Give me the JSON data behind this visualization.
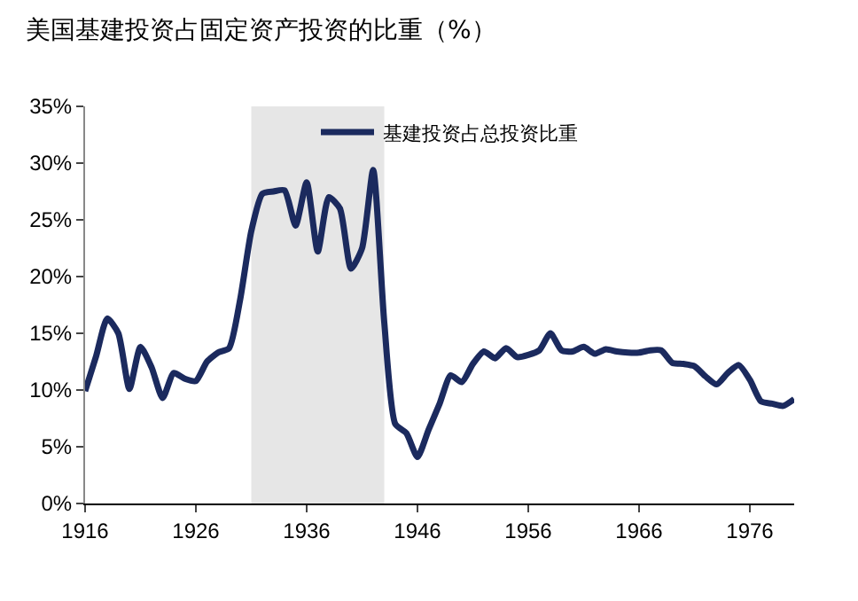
{
  "chart_data": {
    "type": "line",
    "title": "美国基建投资占固定资产投资的比重（%）",
    "x": [
      1916,
      1917,
      1918,
      1919,
      1920,
      1921,
      1922,
      1923,
      1924,
      1925,
      1926,
      1927,
      1928,
      1929,
      1930,
      1931,
      1932,
      1933,
      1934,
      1935,
      1936,
      1937,
      1938,
      1939,
      1940,
      1941,
      1942,
      1943,
      1944,
      1945,
      1946,
      1947,
      1948,
      1949,
      1950,
      1951,
      1952,
      1953,
      1954,
      1955,
      1956,
      1957,
      1958,
      1959,
      1960,
      1961,
      1962,
      1963,
      1964,
      1965,
      1966,
      1967,
      1968,
      1969,
      1970,
      1971,
      1972,
      1973,
      1974,
      1975,
      1976,
      1977,
      1978,
      1979,
      1980
    ],
    "series": [
      {
        "name": "基建投资占总投资比重",
        "color": "#1b2a5e",
        "values": [
          9.9,
          13,
          16.3,
          15,
          10.1,
          13.8,
          12,
          9.3,
          11.5,
          11,
          10.8,
          12.5,
          13.3,
          13.7,
          18,
          24,
          27.3,
          27.5,
          27.6,
          24.5,
          28.3,
          22.2,
          27,
          26,
          20.7,
          22.5,
          29.4,
          16,
          7,
          6.2,
          4.1,
          6.5,
          8.8,
          11.3,
          10.7,
          12.3,
          13.4,
          12.8,
          13.7,
          12.9,
          13.1,
          13.5,
          15,
          13.5,
          13.4,
          13.8,
          13.2,
          13.6,
          13.4,
          13.3,
          13.3,
          13.5,
          13.5,
          12.4,
          12.3,
          12.1,
          11.2,
          10.5,
          11.5,
          12.2,
          10.9,
          9,
          8.8,
          8.6,
          9.2
        ]
      }
    ],
    "xlim": [
      1916,
      1980
    ],
    "xticks": [
      1916,
      1926,
      1936,
      1946,
      1956,
      1966,
      1976
    ],
    "ylim": [
      0,
      35
    ],
    "yticks": [
      {
        "value": 0,
        "label": "0%"
      },
      {
        "value": 5,
        "label": "5%"
      },
      {
        "value": 10,
        "label": "10%"
      },
      {
        "value": 15,
        "label": "15%"
      },
      {
        "value": 20,
        "label": "20%"
      },
      {
        "value": 25,
        "label": "25%"
      },
      {
        "value": 30,
        "label": "30%"
      },
      {
        "value": 35,
        "label": "35%"
      }
    ],
    "bands": [
      {
        "axis": "x",
        "from": 1931,
        "to": 1943,
        "color": "#e6e6e6"
      }
    ],
    "grid": false,
    "legend": "top",
    "marker": "none",
    "line_style": "solid"
  }
}
